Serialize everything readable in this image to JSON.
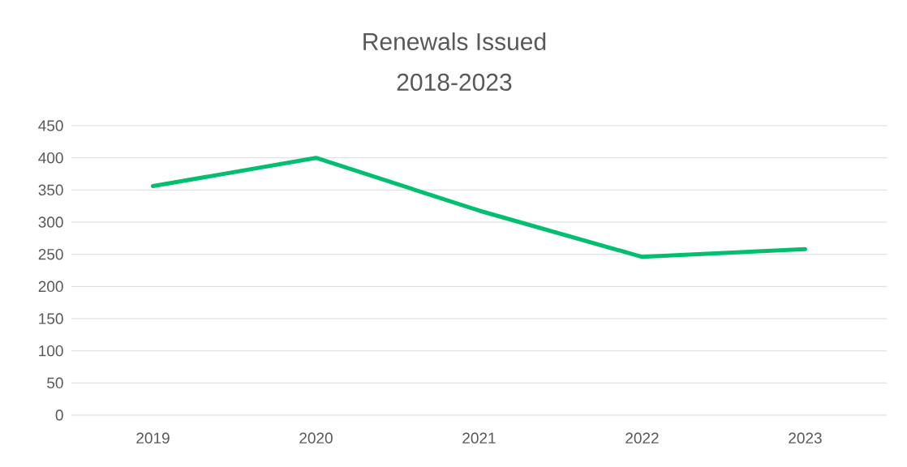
{
  "chart_data": {
    "type": "line",
    "title": "Renewals Issued",
    "subtitle": "2018-2023",
    "categories": [
      "2019",
      "2020",
      "2021",
      "2022",
      "2023"
    ],
    "values": [
      356,
      400,
      318,
      246,
      258
    ],
    "color": "#00bf6f",
    "ylim": [
      0,
      450
    ],
    "yticks": [
      0,
      50,
      100,
      150,
      200,
      250,
      300,
      350,
      400,
      450
    ],
    "grid": "y"
  }
}
